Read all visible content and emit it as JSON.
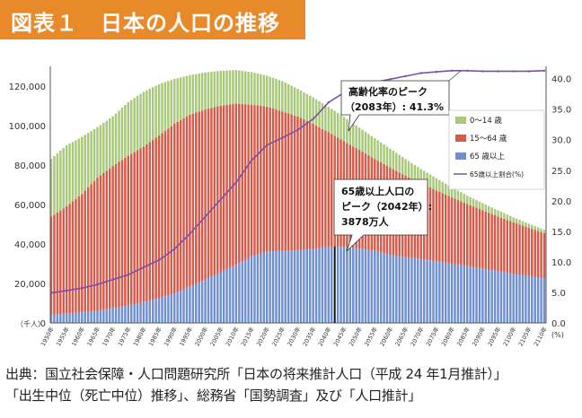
{
  "page_title": "図表１　日本の人口の推移",
  "source_line1": "出典：国立社会保障・人口問題研究所「日本の将来推計人口（平成 24 年1月推計）」",
  "source_line2": "「出生中位（死亡中位）推移」、総務省「国勢調査」及び「人口推計」",
  "colors": {
    "title_band": "#e8892a",
    "age_0_14": "#a8c97a",
    "age_15_64": "#d45a4a",
    "age_65_plus": "#6f8fcf",
    "ratio_line": "#7b4fa8"
  },
  "chart_data": {
    "type": "bar",
    "stacked": true,
    "left_axis": {
      "unit_label": "（千人）",
      "ylim": [
        0,
        130000
      ],
      "ticks": [
        0,
        20000,
        40000,
        60000,
        80000,
        100000,
        120000
      ],
      "tick_labels": [
        "0",
        "20,000",
        "40,000",
        "60,000",
        "80,000",
        "100,000",
        "120,000"
      ]
    },
    "right_axis": {
      "unit_label": "(%)",
      "ylim": [
        0,
        42
      ],
      "ticks": [
        0,
        5,
        10,
        15,
        20,
        25,
        30,
        35,
        40
      ],
      "tick_labels": [
        "0.0",
        "5.0",
        "10.0",
        "15.0",
        "20.0",
        "25.0",
        "30.0",
        "35.0",
        "40.0"
      ]
    },
    "x_tick_labels": [
      "1950年",
      "1955年",
      "1960年",
      "1965年",
      "1970年",
      "1975年",
      "1980年",
      "1985年",
      "1990年",
      "1995年",
      "2000年",
      "2005年",
      "2010年",
      "2015年",
      "2020年",
      "2025年",
      "2030年",
      "2035年",
      "2040年",
      "2045年",
      "2050年",
      "2055年",
      "2060年",
      "2065年",
      "2070年",
      "2075年",
      "2080年",
      "2085年",
      "2090年",
      "2095年",
      "2100年",
      "2105年",
      "2110年"
    ],
    "legend": [
      "0〜14 歳",
      "15〜64 歳",
      "65 歳以上",
      "65歳以上割合(%)"
    ],
    "legend_position": "right",
    "anchors": {
      "years": [
        1950,
        1955,
        1960,
        1965,
        1970,
        1975,
        1980,
        1985,
        1990,
        1995,
        2000,
        2005,
        2010,
        2015,
        2020,
        2025,
        2030,
        2035,
        2040,
        2045,
        2050,
        2055,
        2060,
        2065,
        2070,
        2075,
        2080,
        2085,
        2090,
        2095,
        2100,
        2105,
        2110
      ],
      "total": [
        83200,
        90000,
        94300,
        99200,
        104700,
        111900,
        117100,
        121000,
        123600,
        125600,
        126900,
        127800,
        128100,
        127100,
        125300,
        122500,
        118600,
        114300,
        109500,
        104400,
        99000,
        93600,
        88300,
        83000,
        78000,
        73300,
        68800,
        64500,
        60700,
        57000,
        53500,
        50300,
        47200
      ],
      "age_15_64": [
        49700,
        54300,
        60000,
        67400,
        72100,
        75800,
        78800,
        82500,
        86000,
        87200,
        86200,
        84400,
        81700,
        76800,
        73400,
        70600,
        67700,
        63400,
        57900,
        53500,
        50000,
        46600,
        44200,
        41200,
        38500,
        35800,
        33600,
        31400,
        29500,
        27700,
        26000,
        24300,
        22800
      ],
      "age_65_plus": [
        4100,
        4800,
        5400,
        6200,
        7400,
        8900,
        10600,
        12500,
        14900,
        18300,
        22000,
        25700,
        29500,
        33800,
        36200,
        36600,
        36900,
        37500,
        38700,
        38560,
        37700,
        36500,
        34600,
        33300,
        32400,
        31300,
        30000,
        28900,
        27600,
        26200,
        25000,
        23900,
        22700
      ],
      "ratio": [
        4.9,
        5.3,
        5.7,
        6.3,
        7.1,
        7.9,
        9.1,
        10.3,
        12.1,
        14.6,
        17.4,
        20.2,
        23.0,
        26.6,
        29.1,
        30.3,
        31.6,
        33.4,
        36.1,
        37.7,
        38.8,
        39.4,
        39.9,
        40.4,
        40.9,
        41.1,
        41.3,
        41.3,
        41.2,
        41.2,
        41.2,
        41.2,
        41.3
      ]
    },
    "annotations": {
      "ratio_peak_line1": "高齢化率のピーク",
      "ratio_peak_line2": "（2083年）: 41.3%",
      "elderly_peak_line1": "65歳以上人口の",
      "elderly_peak_line2": "ピーク（2042年）:",
      "elderly_peak_line3": "3878万人"
    }
  }
}
